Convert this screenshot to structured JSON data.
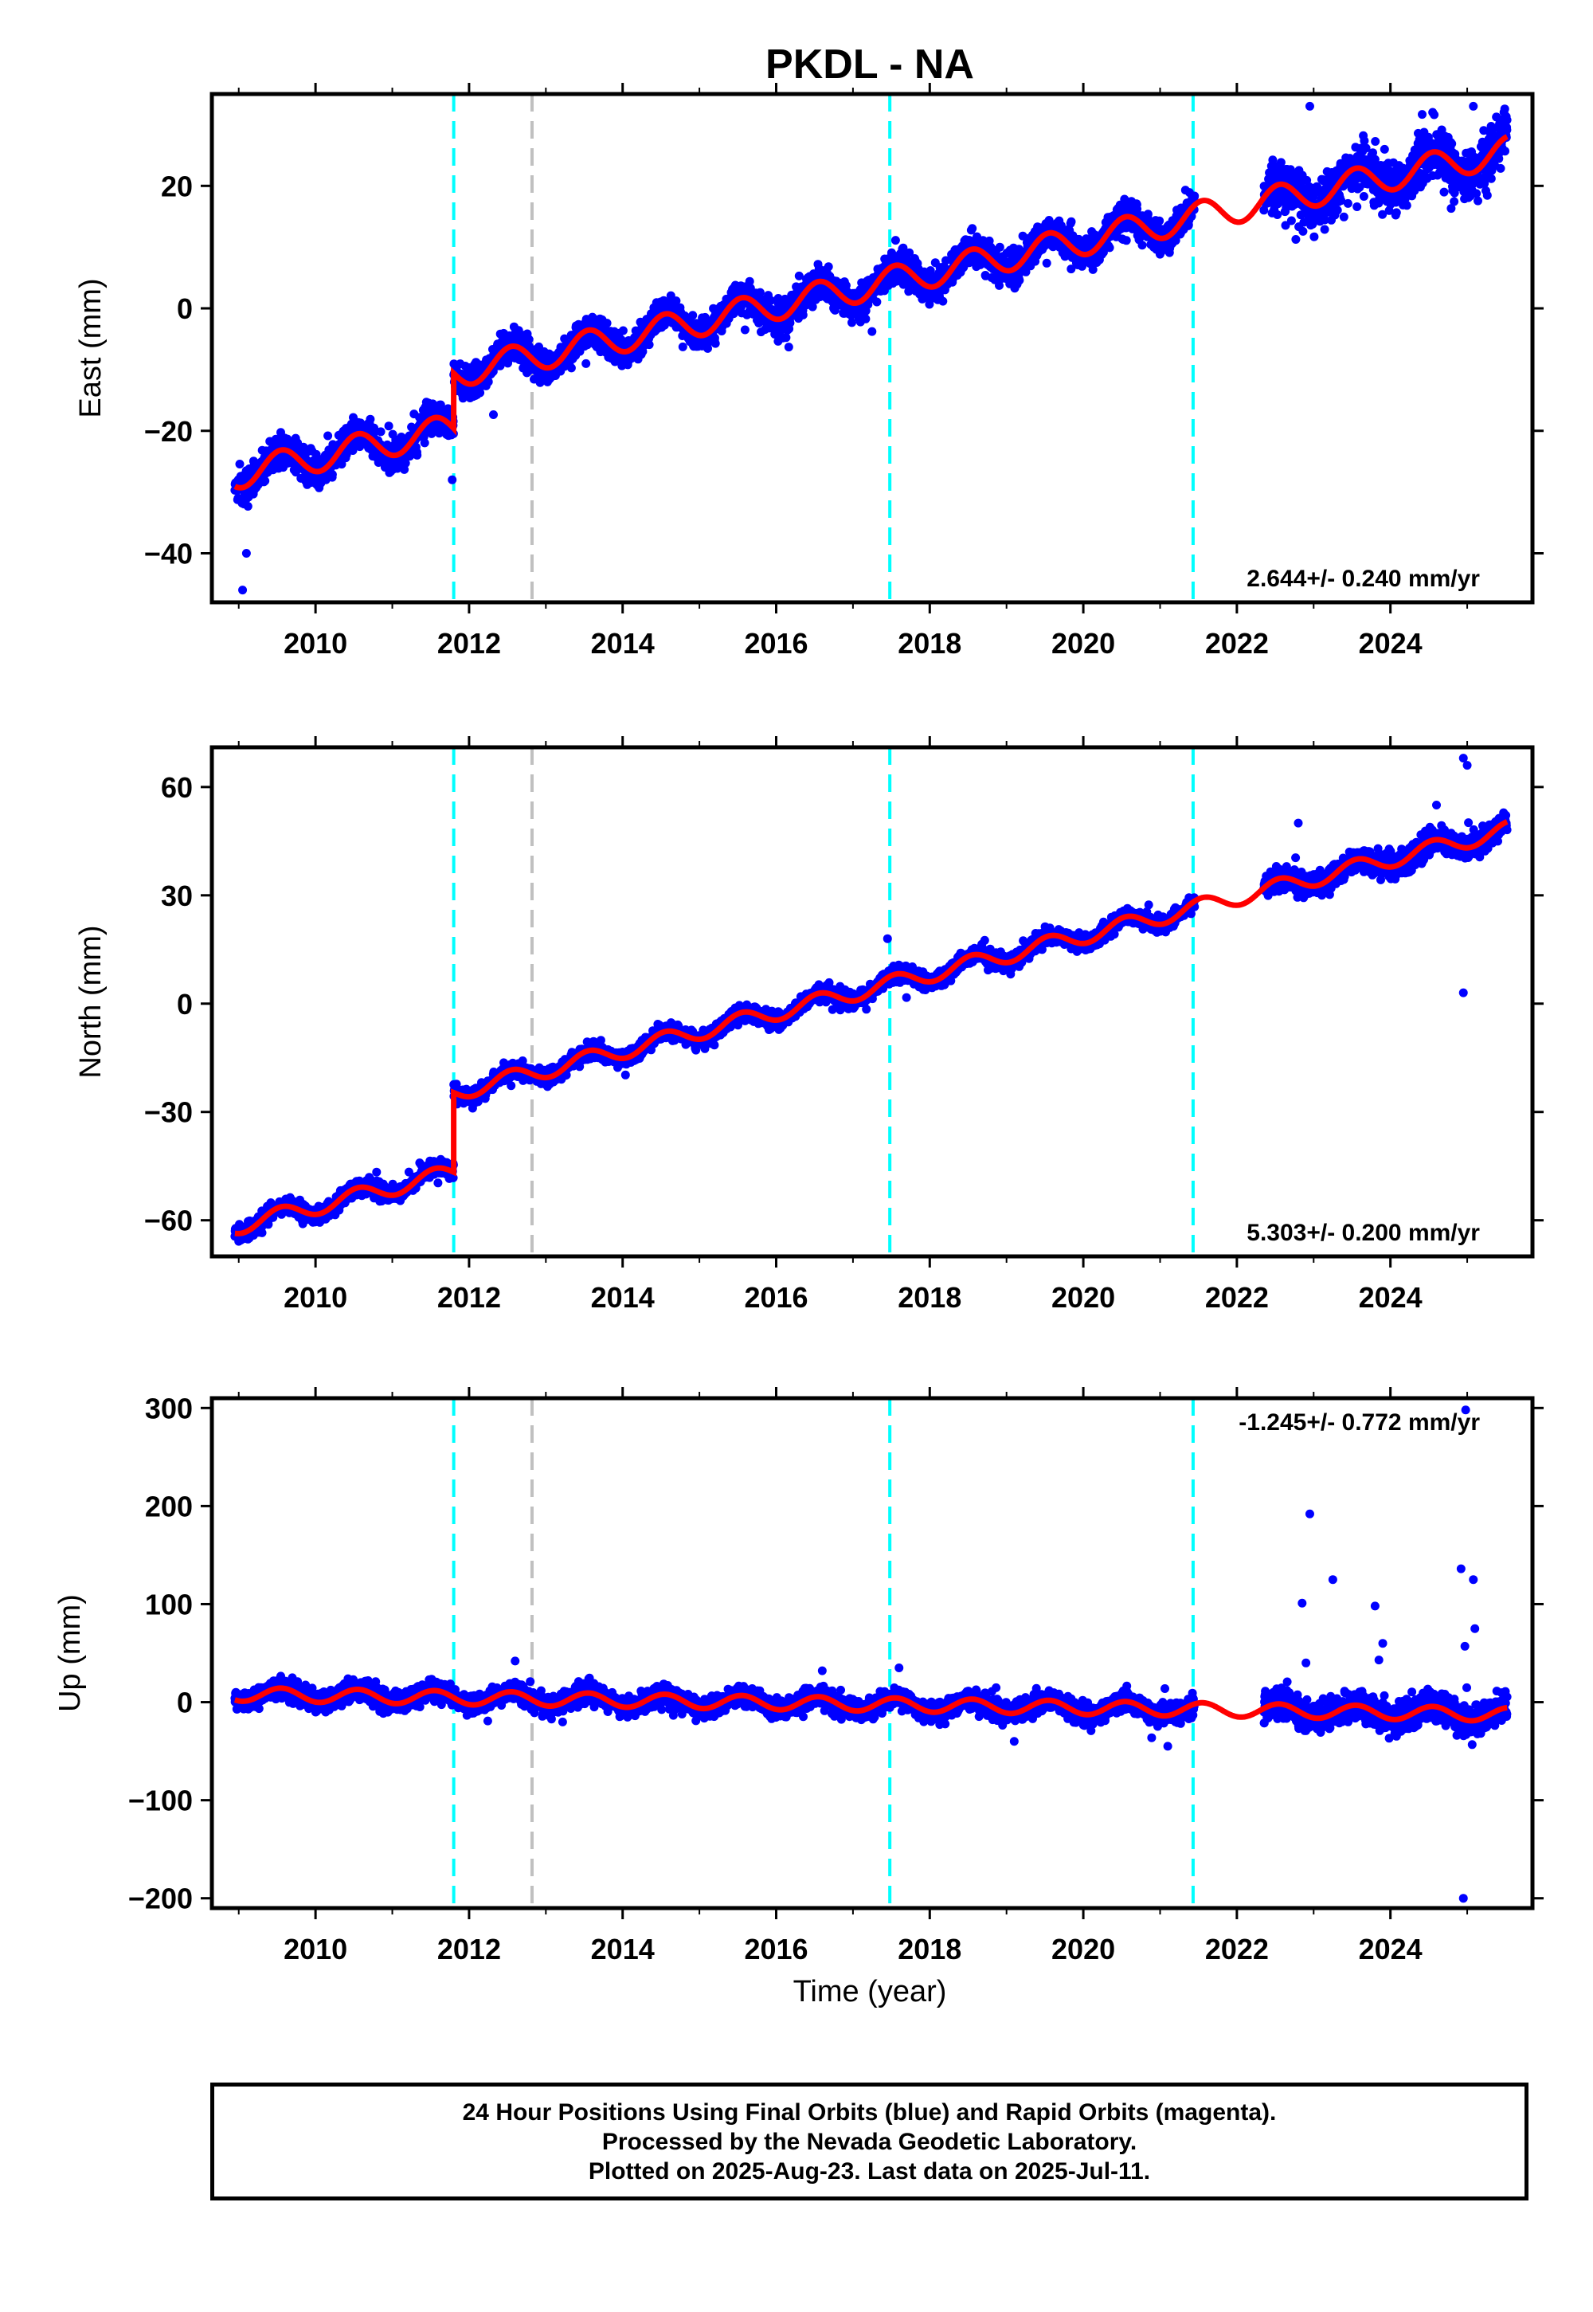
{
  "chart_data": {
    "type": "scatter",
    "title": "PKDL - NA",
    "xlabel": "Time (year)",
    "x_ticks": [
      2010,
      2012,
      2014,
      2016,
      2018,
      2020,
      2022,
      2024
    ],
    "xlim": [
      2008.65,
      2025.85
    ],
    "colors": {
      "points": "#0000ff",
      "model": "#ff0000",
      "equipment_change": "#00ffff",
      "earthquake": "#c0c0c0"
    },
    "vertical_lines": [
      {
        "x": 2011.8,
        "kind": "equipment_change",
        "color": "#00ffff"
      },
      {
        "x": 2012.82,
        "kind": "earthquake",
        "color": "#c0c0c0"
      },
      {
        "x": 2017.48,
        "kind": "equipment_change",
        "color": "#00ffff"
      },
      {
        "x": 2021.43,
        "kind": "equipment_change",
        "color": "#00ffff"
      }
    ],
    "data_range": {
      "start": 2008.95,
      "end": 2025.52
    },
    "data_gap": [
      2021.45,
      2022.35
    ],
    "panels": [
      {
        "ylabel": "East (mm)",
        "ylim": [
          -48,
          35
        ],
        "y_ticks": [
          -40,
          -20,
          0,
          20
        ],
        "rate_label": "2.644+/- 0.240 mm/yr",
        "rate_position": "bottom-right",
        "model": {
          "x0": 2009.0,
          "y0": -27.0,
          "rate": 2.644,
          "amplitude": 2.4,
          "offsets": [
            {
              "t": 2011.8,
              "dy": 9.0
            }
          ]
        },
        "scatter_sd": 1.8,
        "outliers": [
          [
            2009.05,
            -46
          ],
          [
            2009.1,
            -40
          ],
          [
            2011.78,
            -28
          ],
          [
            2022.95,
            33
          ],
          [
            2025.08,
            33
          ],
          [
            2024.55,
            32
          ]
        ]
      },
      {
        "ylabel": "North (mm)",
        "ylim": [
          -70,
          71
        ],
        "y_ticks": [
          -60,
          -30,
          0,
          30,
          60
        ],
        "rate_label": "5.303+/- 0.200 mm/yr",
        "rate_position": "bottom-right",
        "model": {
          "x0": 2009.0,
          "y0": -61.5,
          "rate": 5.303,
          "amplitude": 2.3,
          "offsets": [
            {
              "t": 2011.8,
              "dy": 22.0
            }
          ]
        },
        "scatter_sd": 1.5,
        "outliers": [
          [
            2024.95,
            68
          ],
          [
            2025.0,
            66
          ],
          [
            2024.95,
            3
          ],
          [
            2022.8,
            50
          ],
          [
            2017.45,
            18
          ],
          [
            2024.6,
            55
          ]
        ]
      },
      {
        "ylabel": "Up (mm)",
        "ylim": [
          -210,
          310
        ],
        "y_ticks": [
          -200,
          -100,
          0,
          100,
          200,
          300
        ],
        "rate_label": "-1.245+/- 0.772 mm/yr",
        "rate_position": "top-right",
        "model": {
          "x0": 2009.0,
          "y0": 8.0,
          "rate": -1.245,
          "amplitude": 7.0,
          "offsets": []
        },
        "scatter_sd": 7.0,
        "outliers": [
          [
            2022.95,
            192
          ],
          [
            2023.25,
            125
          ],
          [
            2022.85,
            101
          ],
          [
            2023.8,
            98
          ],
          [
            2024.92,
            136
          ],
          [
            2025.08,
            125
          ],
          [
            2025.1,
            75
          ],
          [
            2024.98,
            298
          ],
          [
            2024.95,
            -200
          ],
          [
            2022.9,
            40
          ],
          [
            2023.9,
            60
          ],
          [
            2023.85,
            43
          ],
          [
            2024.97,
            57
          ],
          [
            2021.1,
            -45
          ],
          [
            2019.1,
            -40
          ],
          [
            2016.6,
            32
          ],
          [
            2012.6,
            42
          ],
          [
            2017.6,
            35
          ]
        ]
      }
    ]
  },
  "footer": {
    "line1": "24 Hour Positions Using Final Orbits (blue) and Rapid Orbits (magenta).",
    "line2": "Processed by the Nevada Geodetic Laboratory.",
    "line3": "Plotted on 2025-Aug-23. Last data on 2025-Jul-11."
  }
}
